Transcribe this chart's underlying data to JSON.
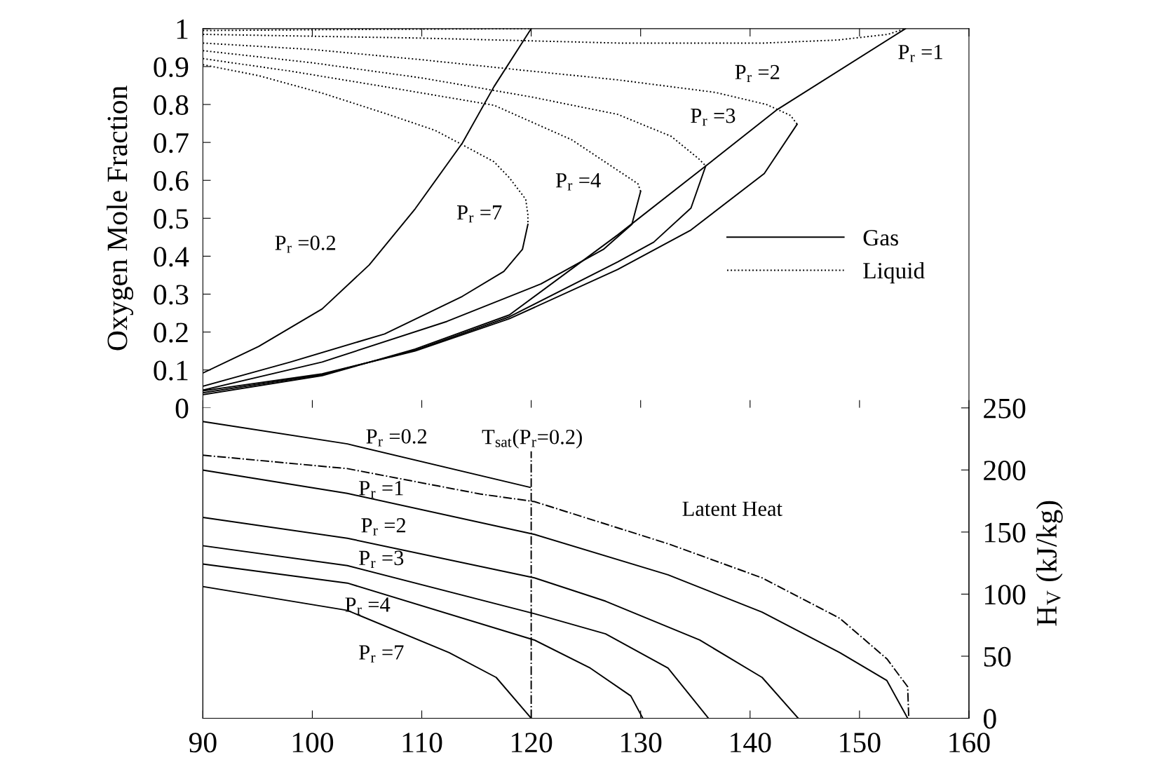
{
  "chart_data": [
    {
      "type": "line",
      "ylabel": "Oxygen Mole Fraction",
      "xlim": [
        90,
        160
      ],
      "xticks": [
        {
          "value": 90,
          "label": null
        },
        {
          "value": 100,
          "label": null
        },
        {
          "value": 110,
          "label": null
        },
        {
          "value": 120,
          "label": null
        },
        {
          "value": 130,
          "label": null
        },
        {
          "value": 140,
          "label": null
        },
        {
          "value": 150,
          "label": null
        },
        {
          "value": 160,
          "label": null
        }
      ],
      "ylim": [
        0,
        1
      ],
      "yticks": [
        0,
        0.1,
        0.2,
        0.3,
        0.4,
        0.5,
        0.6,
        0.7,
        0.8,
        0.9,
        1
      ],
      "tick_labels": "y",
      "grid": false,
      "legend": "center right",
      "marker": "none",
      "series": [
        {
          "name": "Gas",
          "color": "#000000",
          "line_style": "solid",
          "x": [
            90,
            95.1,
            100.9,
            105.2,
            109.4,
            113.7,
            116.6,
            120.0
          ],
          "values": [
            0.092,
            0.162,
            0.261,
            0.377,
            0.525,
            0.698,
            0.847,
            1.0
          ]
        },
        {
          "color": "#000000",
          "line_style": "solid",
          "x": [
            90,
            100.9,
            109.4,
            118.0,
            127.9,
            135.95,
            142.5,
            154.2
          ],
          "values": [
            0.035,
            0.085,
            0.155,
            0.245,
            0.456,
            0.638,
            0.787,
            1.0
          ]
        },
        {
          "color": "#000000",
          "line_style": "solid",
          "x": [
            90,
            100.9,
            109.4,
            118.0,
            127.9,
            134.6,
            141.3,
            144.3
          ],
          "values": [
            0.045,
            0.09,
            0.15,
            0.235,
            0.365,
            0.469,
            0.618,
            0.748
          ]
        },
        {
          "color": "#000000",
          "line_style": "solid",
          "x": [
            90,
            100.9,
            109.4,
            118.0,
            127.9,
            131.2,
            134.6,
            135.95
          ],
          "values": [
            0.04,
            0.088,
            0.152,
            0.24,
            0.385,
            0.437,
            0.527,
            0.638
          ]
        },
        {
          "color": "#000000",
          "line_style": "solid",
          "x": [
            90,
            100.9,
            112.3,
            120.9,
            126.6,
            129.2,
            130.0
          ],
          "values": [
            0.047,
            0.121,
            0.228,
            0.327,
            0.418,
            0.484,
            0.571
          ]
        },
        {
          "color": "#000000",
          "line_style": "solid",
          "x": [
            90,
            98.0,
            106.6,
            113.7,
            117.5,
            119.2,
            119.7
          ],
          "values": [
            0.057,
            0.121,
            0.195,
            0.294,
            0.36,
            0.418,
            0.484
          ]
        },
        {
          "name": "Liquid",
          "color": "#000000",
          "line_style": "dotted",
          "x": [
            90,
            105,
            120.0
          ],
          "values": [
            0.995,
            0.998,
            1.0
          ]
        },
        {
          "color": "#000000",
          "line_style": "dotted",
          "x": [
            90,
            110,
            128,
            141.3,
            148,
            152.6,
            154.2
          ],
          "values": [
            0.985,
            0.975,
            0.962,
            0.962,
            0.97,
            0.985,
            1.0
          ]
        },
        {
          "color": "#000000",
          "line_style": "dotted",
          "x": [
            90,
            100,
            110,
            120,
            127.9,
            136.8,
            141.5,
            143.7,
            144.3
          ],
          "values": [
            0.962,
            0.945,
            0.918,
            0.888,
            0.865,
            0.832,
            0.8,
            0.771,
            0.748
          ]
        },
        {
          "color": "#000000",
          "line_style": "dotted",
          "x": [
            90,
            100,
            110,
            120,
            127.9,
            132.8,
            135.3,
            135.95
          ],
          "values": [
            0.942,
            0.91,
            0.87,
            0.82,
            0.774,
            0.716,
            0.657,
            0.638
          ]
        },
        {
          "color": "#000000",
          "line_style": "dotted",
          "x": [
            90,
            98.0,
            106.6,
            116.6,
            123.7,
            129.75,
            130.0
          ],
          "values": [
            0.921,
            0.888,
            0.847,
            0.798,
            0.707,
            0.591,
            0.571
          ]
        },
        {
          "color": "#000000",
          "line_style": "dotted",
          "x": [
            90,
            95.1,
            100.9,
            106.6,
            111.2,
            113.7,
            116.6,
            118.0,
            119.5,
            119.7,
            119.7
          ],
          "values": [
            0.905,
            0.876,
            0.83,
            0.777,
            0.732,
            0.694,
            0.649,
            0.607,
            0.55,
            0.509,
            0.484
          ]
        }
      ],
      "annotations": [
        "P$_{r}$ =0.2",
        "P$_{r}$ =7",
        "P$_{r}$ =4",
        "P$_{r}$ =3",
        "P$_{r}$ =2",
        "P$_{r}$ =1"
      ]
    },
    {
      "type": "line",
      "y2label": "H$_{V}$ (kJ/kg)",
      "xlim": [
        90,
        160
      ],
      "xticks": [
        90,
        100,
        110,
        120,
        130,
        140,
        150,
        160
      ],
      "y2lim": [
        0,
        250
      ],
      "y2ticks": [
        0,
        50,
        100,
        150,
        200,
        250
      ],
      "grid": false,
      "marker": "none",
      "series": [
        {
          "axis": "y2",
          "color": "#000000",
          "line_style": "solid",
          "x": [
            90,
            103.2,
            119.9
          ],
          "values": [
            239,
            221,
            186
          ]
        },
        {
          "axis": "y2",
          "color": "#000000",
          "line_style": "solid",
          "x": [
            90,
            103.2,
            120.3,
            132.5,
            141.1,
            148.2,
            152.5,
            154.4
          ],
          "values": [
            199.9,
            181.1,
            148.1,
            115.6,
            85.5,
            52.9,
            30.4,
            0
          ]
        },
        {
          "axis": "y2",
          "color": "#000000",
          "line_style": "solid",
          "x": [
            90,
            103.2,
            120.3,
            126.8,
            135.4,
            141.1,
            144.4
          ],
          "values": [
            161.8,
            145.0,
            113.1,
            94.3,
            63.0,
            32.9,
            0
          ]
        },
        {
          "axis": "y2",
          "color": "#000000",
          "line_style": "solid",
          "x": [
            90,
            103.2,
            120.3,
            126.8,
            132.5,
            136.2
          ],
          "values": [
            139.0,
            123.0,
            84.2,
            68.0,
            40.4,
            0
          ]
        },
        {
          "axis": "y2",
          "color": "#000000",
          "line_style": "solid",
          "x": [
            90,
            103.2,
            120.3,
            125.4,
            129.1,
            130.2
          ],
          "values": [
            124.2,
            108.9,
            63.0,
            40.4,
            18.0,
            0
          ]
        },
        {
          "axis": "y2",
          "color": "#000000",
          "line_style": "solid",
          "x": [
            90,
            103.2,
            112.5,
            116.8,
            120.0
          ],
          "values": [
            106.1,
            86.9,
            52.9,
            32.9,
            0
          ]
        },
        {
          "axis": "y2",
          "color": "#000000",
          "line_style": "dashdot",
          "x": [
            90,
            103.2,
            115.3,
            120.3,
            132.5,
            141.1,
            148.2,
            152.5,
            154.4,
            154.5
          ],
          "values": [
            211.9,
            201.1,
            180.7,
            174.5,
            140.6,
            113.1,
            80.5,
            47.9,
            25.4,
            0
          ]
        }
      ],
      "ref_lines": [
        {
          "axis": "x",
          "value": 120,
          "line_style": "dashdot",
          "color": "#000000"
        }
      ],
      "annotations": [
        "P$_{r}$ =0.2",
        "P$_{r}$ =1",
        "P$_{r}$ =2",
        "P$_{r}$ =3",
        "P$_{r}$ =4",
        "P$_{r}$ =7",
        "Latent Heat",
        "T$_{sat}$(P$_{r}$=0.2)"
      ]
    }
  ]
}
